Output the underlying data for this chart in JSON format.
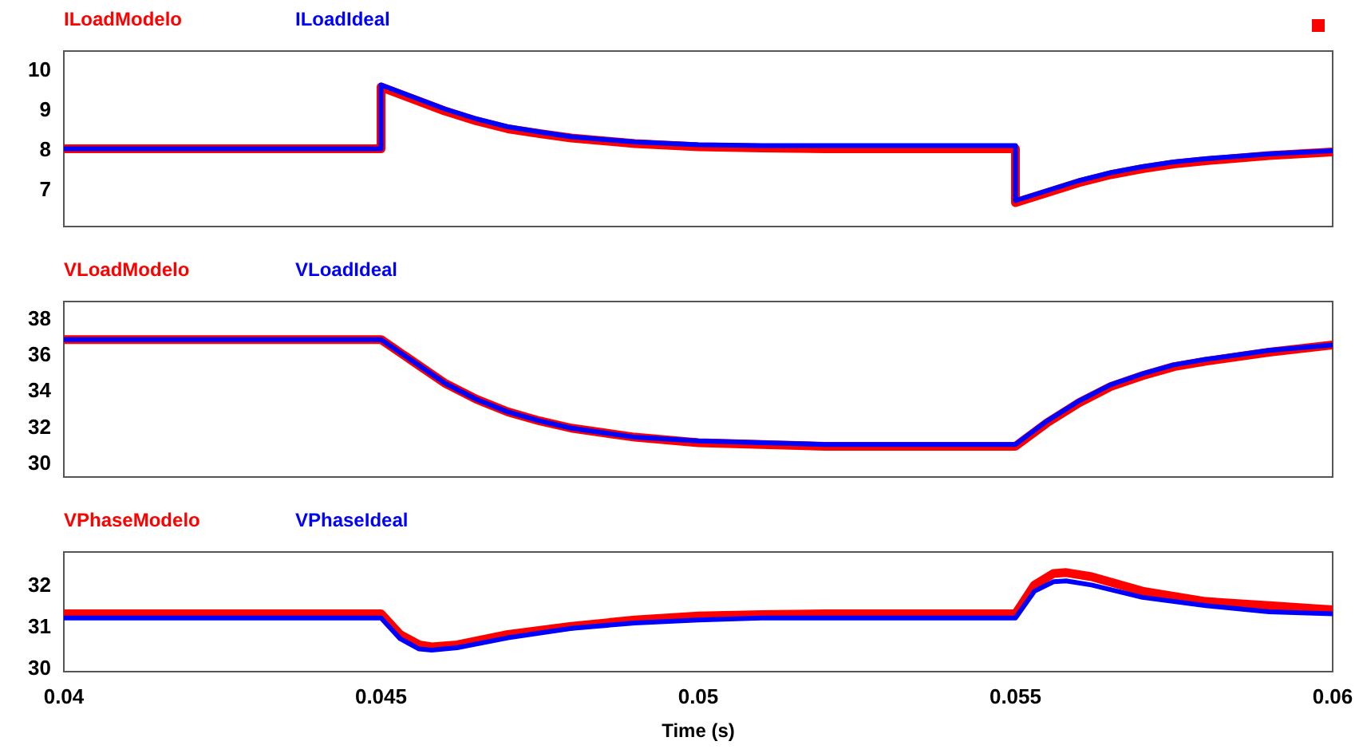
{
  "chart_data": [
    {
      "type": "line",
      "xlim": [
        0.04,
        0.06
      ],
      "ylim": [
        6.05,
        10.45
      ],
      "yticks": [
        7,
        8,
        9,
        10
      ],
      "tick_labels": "y",
      "grid": false,
      "legend": "top left",
      "marker": "none",
      "line_style": "solid",
      "series": [
        {
          "name": "ILoadModelo",
          "color": "#ff0000",
          "x": [
            0.04,
            0.045,
            0.045,
            0.0455,
            0.046,
            0.0465,
            0.047,
            0.0475,
            0.048,
            0.049,
            0.05,
            0.051,
            0.052,
            0.055,
            0.055,
            0.0555,
            0.056,
            0.0565,
            0.057,
            0.0575,
            0.058,
            0.059,
            0.06
          ],
          "values": [
            8.0,
            8.0,
            9.55,
            9.25,
            8.95,
            8.7,
            8.5,
            8.38,
            8.27,
            8.13,
            8.05,
            8.02,
            8.0,
            8.0,
            6.65,
            6.9,
            7.15,
            7.35,
            7.5,
            7.62,
            7.7,
            7.83,
            7.92
          ]
        },
        {
          "name": "ILoadIdeal",
          "color": "#0000ff",
          "x": [
            0.04,
            0.045,
            0.045,
            0.0455,
            0.046,
            0.0465,
            0.047,
            0.0475,
            0.048,
            0.049,
            0.05,
            0.051,
            0.052,
            0.055,
            0.055,
            0.0555,
            0.056,
            0.0565,
            0.057,
            0.0575,
            0.058,
            0.059,
            0.06
          ],
          "values": [
            8.0,
            8.0,
            9.6,
            9.3,
            9.0,
            8.75,
            8.55,
            8.42,
            8.3,
            8.17,
            8.1,
            8.08,
            8.08,
            8.08,
            6.7,
            6.95,
            7.2,
            7.4,
            7.55,
            7.67,
            7.75,
            7.87,
            7.95
          ]
        }
      ]
    },
    {
      "type": "line",
      "xlim": [
        0.04,
        0.06
      ],
      "ylim": [
        29.2,
        38.9
      ],
      "yticks": [
        30,
        32,
        34,
        36,
        38
      ],
      "tick_labels": "y",
      "grid": false,
      "legend": "top left",
      "marker": "none",
      "line_style": "solid",
      "series": [
        {
          "name": "VLoadModelo",
          "color": "#ff0000",
          "x": [
            0.04,
            0.045,
            0.0455,
            0.046,
            0.0465,
            0.047,
            0.0475,
            0.048,
            0.049,
            0.05,
            0.051,
            0.052,
            0.055,
            0.0555,
            0.056,
            0.0565,
            0.057,
            0.0575,
            0.058,
            0.059,
            0.06
          ],
          "values": [
            36.8,
            36.8,
            35.6,
            34.4,
            33.5,
            32.8,
            32.3,
            31.9,
            31.4,
            31.1,
            31.0,
            30.9,
            30.9,
            32.2,
            33.3,
            34.2,
            34.8,
            35.3,
            35.6,
            36.1,
            36.5
          ]
        },
        {
          "name": "VLoadIdeal",
          "color": "#0000ff",
          "x": [
            0.04,
            0.045,
            0.0455,
            0.046,
            0.0465,
            0.047,
            0.0475,
            0.048,
            0.049,
            0.05,
            0.051,
            0.052,
            0.055,
            0.0555,
            0.056,
            0.0565,
            0.057,
            0.0575,
            0.058,
            0.059,
            0.06
          ],
          "values": [
            36.8,
            36.8,
            35.6,
            34.4,
            33.5,
            32.8,
            32.3,
            31.9,
            31.4,
            31.2,
            31.1,
            31.0,
            31.0,
            32.3,
            33.4,
            34.3,
            34.9,
            35.4,
            35.7,
            36.2,
            36.5
          ]
        }
      ]
    },
    {
      "type": "line",
      "xlabel": "Time (s)",
      "xlim": [
        0.04,
        0.06
      ],
      "xticks": [
        0.04,
        0.045,
        0.05,
        0.055,
        0.06
      ],
      "ylim": [
        29.9,
        32.8
      ],
      "yticks": [
        30,
        31,
        32
      ],
      "grid": false,
      "legend": "top left",
      "marker": "none",
      "line_style": "solid",
      "series": [
        {
          "name": "VPhaseModelo",
          "color": "#ff0000",
          "x": [
            0.04,
            0.045,
            0.0453,
            0.0456,
            0.0458,
            0.0462,
            0.047,
            0.048,
            0.049,
            0.05,
            0.051,
            0.052,
            0.055,
            0.0553,
            0.0556,
            0.0558,
            0.0562,
            0.057,
            0.058,
            0.059,
            0.06
          ],
          "values": [
            31.3,
            31.3,
            30.8,
            30.55,
            30.5,
            30.55,
            30.8,
            31.0,
            31.15,
            31.25,
            31.28,
            31.3,
            31.3,
            32.0,
            32.28,
            32.3,
            32.2,
            31.85,
            31.6,
            31.5,
            31.4
          ]
        },
        {
          "name": "VPhaseIdeal",
          "color": "#0000ff",
          "x": [
            0.04,
            0.045,
            0.0453,
            0.0456,
            0.0458,
            0.0462,
            0.047,
            0.048,
            0.049,
            0.05,
            0.051,
            0.052,
            0.055,
            0.0553,
            0.0556,
            0.0558,
            0.0562,
            0.057,
            0.058,
            0.059,
            0.06
          ],
          "values": [
            31.2,
            31.2,
            30.7,
            30.45,
            30.42,
            30.48,
            30.72,
            30.95,
            31.08,
            31.15,
            31.2,
            31.2,
            31.2,
            31.85,
            32.08,
            32.1,
            32.0,
            31.7,
            31.5,
            31.35,
            31.3
          ]
        }
      ]
    }
  ]
}
